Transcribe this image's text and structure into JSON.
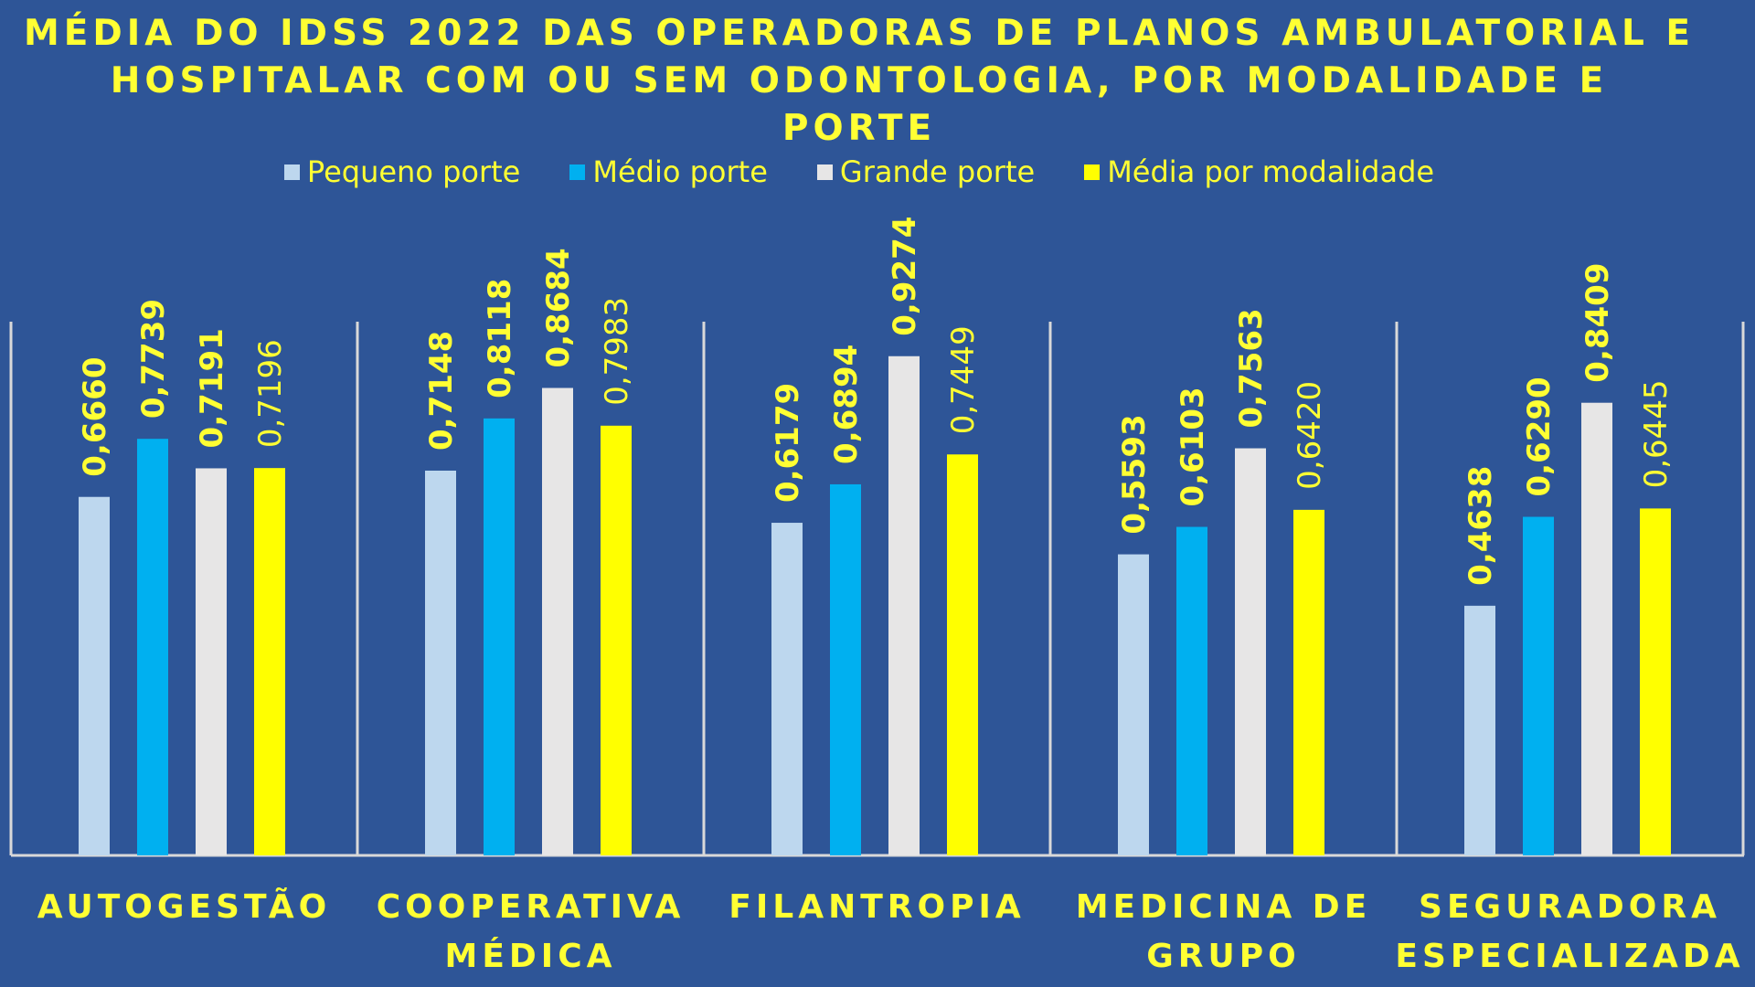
{
  "chart_data": {
    "type": "bar",
    "title_lines": [
      "MÉDIA DO IDSS 2022 DAS OPERADORAS DE PLANOS AMBULATORIAL E",
      "HOSPITALAR COM OU SEM ODONTOLOGIA, POR MODALIDADE E",
      "PORTE"
    ],
    "categories": [
      [
        "AUTOGESTÃO"
      ],
      [
        "COOPERATIVA",
        "MÉDICA"
      ],
      [
        "FILANTROPIA"
      ],
      [
        "MEDICINA DE",
        "GRUPO"
      ],
      [
        "SEGURADORA",
        "ESPECIALIZADA"
      ]
    ],
    "series": [
      {
        "name": "Pequeno porte",
        "color": "#bdd7ee",
        "values": [
          0.666,
          0.7148,
          0.6179,
          0.5593,
          0.4638
        ],
        "labels": [
          "0,6660",
          "0,7148",
          "0,6179",
          "0,5593",
          "0,4638"
        ],
        "label_bold": true
      },
      {
        "name": "Médio porte",
        "color": "#00b0f0",
        "values": [
          0.7739,
          0.8118,
          0.6894,
          0.6103,
          0.629
        ],
        "labels": [
          "0,7739",
          "0,8118",
          "0,6894",
          "0,6103",
          "0,6290"
        ],
        "label_bold": true
      },
      {
        "name": "Grande porte",
        "color": "#e7e6e6",
        "values": [
          0.7191,
          0.8684,
          0.9274,
          0.7563,
          0.8409
        ],
        "labels": [
          "0,7191",
          "0,8684",
          "0,9274",
          "0,7563",
          "0,8409"
        ],
        "label_bold": true
      },
      {
        "name": "Média por modalidade",
        "color": "#ffff00",
        "values": [
          0.7196,
          0.7983,
          0.7449,
          0.642,
          0.6445
        ],
        "labels": [
          "0,7196",
          "0,7983",
          "0,7449",
          "0,6420",
          "0,6445"
        ],
        "label_bold": false
      }
    ],
    "ylim": [
      0,
      1.0
    ],
    "legend_position": "top",
    "label_color": "#ffff33",
    "axis_color": "#d9d9d9"
  }
}
